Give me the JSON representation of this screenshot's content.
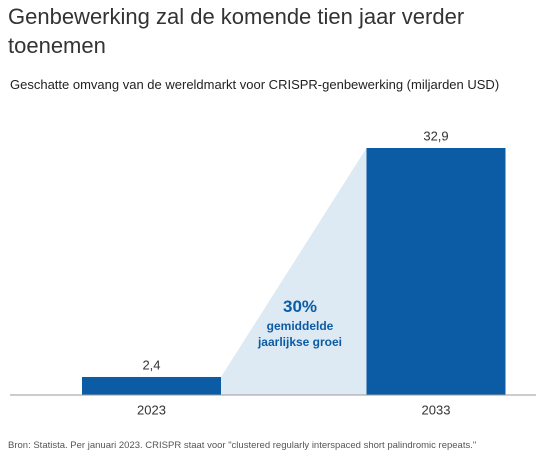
{
  "chart_data": {
    "type": "bar",
    "title": "Genbewerking zal de komende tien jaar verder toenemen",
    "subtitle": "Geschatte omvang van de wereldmarkt voor CRISPR-genbewerking (miljarden USD)",
    "categories": [
      "2023",
      "2033"
    ],
    "values": [
      2.4,
      32.9
    ],
    "value_labels": [
      "2,4",
      "32,9"
    ],
    "color": "#0b5ca5",
    "growth_fill": "#dde9f3",
    "annotation": {
      "value": "30%",
      "text": "gemiddelde jaarlijkse groei"
    },
    "source": "Bron: Statista. Per januari 2023. CRISPR staat voor \"clustered regularly interspaced short palindromic repeats.\""
  }
}
